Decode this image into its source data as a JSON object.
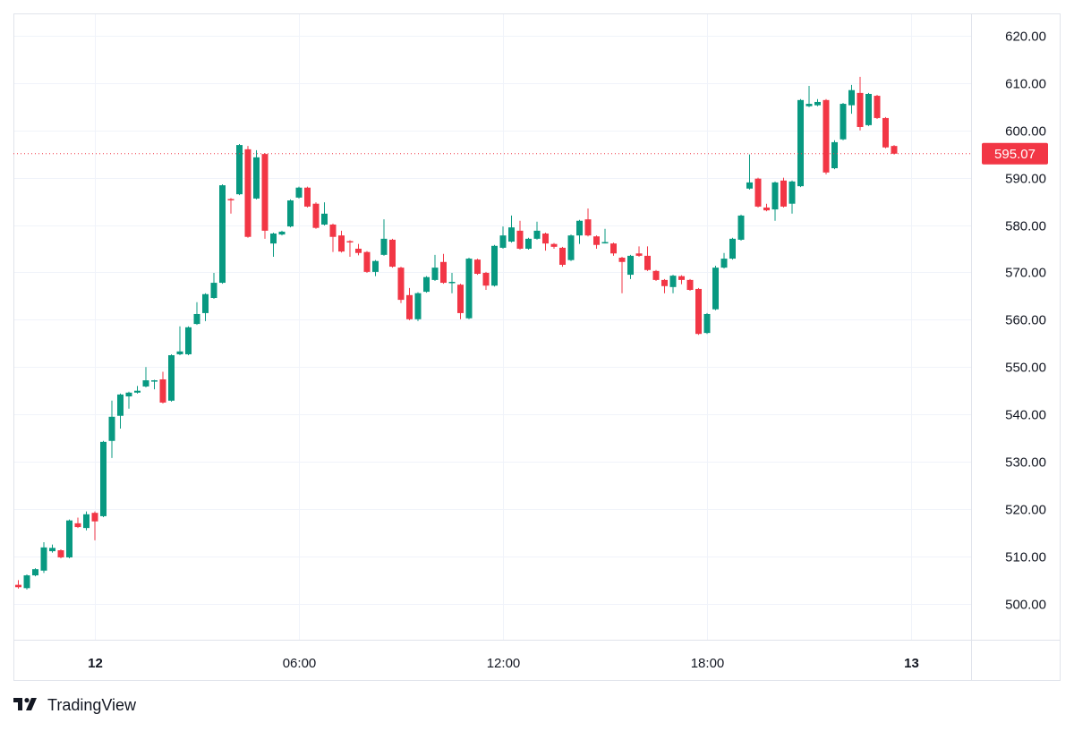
{
  "chart_data": {
    "type": "candlestick",
    "interval_minutes": 15,
    "colors": {
      "up": "#089981",
      "down": "#f23645",
      "grid": "#f0f3fa",
      "last_price": "#f23645"
    },
    "grid": true,
    "ylim": [
      492.4,
      624.7
    ],
    "y_ticks": [
      "500.00",
      "510.00",
      "520.00",
      "530.00",
      "540.00",
      "550.00",
      "560.00",
      "570.00",
      "580.00",
      "590.00",
      "600.00",
      "610.00",
      "620.00"
    ],
    "x_ticks": [
      {
        "label": "12",
        "time": "12 00:00",
        "bold": true
      },
      {
        "label": "06:00",
        "time": "12 06:00",
        "bold": false
      },
      {
        "label": "12:00",
        "time": "12 12:00",
        "bold": false
      },
      {
        "label": "18:00",
        "time": "12 18:00",
        "bold": false
      },
      {
        "label": "13",
        "time": "13 00:00",
        "bold": true
      }
    ],
    "last_price": {
      "value": 595.07,
      "label": "595.07"
    },
    "columns": [
      "time",
      "open",
      "high",
      "low",
      "close"
    ],
    "candles": [
      [
        "11 21:45",
        504.0,
        505.0,
        503.2,
        503.5
      ],
      [
        "11 22:00",
        503.3,
        506.2,
        503.0,
        506.0
      ],
      [
        "11 22:15",
        506.0,
        507.5,
        505.8,
        507.3
      ],
      [
        "11 22:30",
        507.0,
        513.0,
        506.5,
        511.9
      ],
      [
        "11 22:45",
        511.1,
        512.5,
        510.8,
        511.8
      ],
      [
        "11 23:00",
        511.3,
        511.5,
        509.6,
        509.8
      ],
      [
        "11 23:15",
        509.8,
        517.8,
        509.6,
        517.6
      ],
      [
        "11 23:30",
        517.0,
        518.2,
        516.0,
        516.2
      ],
      [
        "11 23:45",
        516.0,
        519.5,
        515.5,
        518.9
      ],
      [
        "12 00:00",
        519.2,
        519.5,
        513.4,
        517.4
      ],
      [
        "12 00:15",
        518.5,
        534.4,
        518.3,
        534.2
      ],
      [
        "12 00:30",
        534.4,
        542.9,
        530.8,
        539.5
      ],
      [
        "12 00:45",
        539.7,
        544.4,
        537.0,
        544.2
      ],
      [
        "12 01:00",
        543.8,
        544.8,
        541.2,
        544.6
      ],
      [
        "12 01:15",
        544.6,
        546.0,
        544.4,
        545.0
      ],
      [
        "12 01:30",
        545.9,
        550.0,
        545.7,
        547.2
      ],
      [
        "12 01:45",
        547.0,
        547.3,
        545.3,
        547.2
      ],
      [
        "12 02:00",
        547.4,
        549.0,
        542.3,
        542.5
      ],
      [
        "12 02:15",
        542.9,
        552.7,
        542.7,
        552.5
      ],
      [
        "12 02:30",
        552.7,
        558.6,
        552.5,
        553.3
      ],
      [
        "12 02:45",
        552.7,
        558.6,
        552.5,
        558.4
      ],
      [
        "12 03:00",
        559.1,
        563.7,
        558.9,
        561.2
      ],
      [
        "12 03:15",
        561.4,
        565.6,
        559.7,
        565.4
      ],
      [
        "12 03:30",
        564.6,
        569.9,
        564.4,
        567.8
      ],
      [
        "12 03:45",
        567.8,
        588.6,
        567.6,
        588.4
      ],
      [
        "12 04:00",
        585.5,
        585.7,
        582.4,
        585.3
      ],
      [
        "12 04:15",
        586.5,
        597.1,
        586.3,
        596.9
      ],
      [
        "12 04:30",
        596.0,
        596.7,
        577.3,
        577.5
      ],
      [
        "12 04:45",
        585.6,
        595.8,
        585.4,
        594.3
      ],
      [
        "12 05:00",
        595.0,
        595.2,
        577.1,
        578.8
      ],
      [
        "12 05:15",
        576.1,
        578.4,
        573.3,
        578.2
      ],
      [
        "12 05:30",
        578.0,
        578.8,
        577.8,
        578.6
      ],
      [
        "12 05:45",
        579.7,
        585.4,
        579.5,
        585.2
      ],
      [
        "12 06:00",
        585.8,
        588.1,
        585.6,
        587.9
      ],
      [
        "12 06:15",
        587.9,
        588.1,
        583.7,
        583.9
      ],
      [
        "12 06:30",
        584.5,
        584.8,
        579.2,
        579.4
      ],
      [
        "12 06:45",
        580.1,
        584.8,
        579.9,
        582.4
      ],
      [
        "12 07:00",
        580.1,
        580.3,
        574.3,
        577.5
      ],
      [
        "12 07:15",
        577.8,
        578.8,
        574.2,
        574.4
      ],
      [
        "12 07:30",
        576.6,
        576.8,
        573.3,
        576.4
      ],
      [
        "12 07:45",
        575.0,
        576.0,
        573.6,
        574.1
      ],
      [
        "12 08:00",
        574.3,
        574.5,
        569.9,
        570.1
      ],
      [
        "12 08:15",
        570.1,
        572.6,
        569.2,
        572.4
      ],
      [
        "12 08:30",
        573.7,
        581.2,
        573.5,
        577.1
      ],
      [
        "12 08:45",
        576.9,
        577.1,
        571.0,
        571.2
      ],
      [
        "12 09:00",
        571.0,
        571.2,
        563.5,
        564.2
      ],
      [
        "12 09:15",
        565.2,
        566.7,
        559.9,
        560.1
      ],
      [
        "12 09:30",
        560.1,
        565.8,
        559.7,
        565.6
      ],
      [
        "12 09:45",
        565.9,
        569.2,
        565.7,
        569.0
      ],
      [
        "12 10:00",
        568.4,
        573.7,
        568.2,
        571.0
      ],
      [
        "12 10:15",
        572.2,
        573.9,
        567.6,
        567.8
      ],
      [
        "12 10:30",
        567.8,
        569.9,
        565.6,
        568.0
      ],
      [
        "12 10:45",
        567.4,
        567.6,
        560.1,
        561.4
      ],
      [
        "12 11:00",
        560.3,
        573.1,
        560.1,
        572.9
      ],
      [
        "12 11:15",
        572.7,
        572.9,
        569.5,
        569.7
      ],
      [
        "12 11:30",
        569.9,
        570.1,
        566.3,
        567.2
      ],
      [
        "12 11:45",
        567.2,
        575.8,
        567.0,
        575.6
      ],
      [
        "12 12:00",
        575.2,
        579.7,
        575.0,
        577.8
      ],
      [
        "12 12:15",
        576.5,
        582.0,
        576.3,
        579.5
      ],
      [
        "12 12:30",
        578.8,
        580.9,
        574.8,
        575.0
      ],
      [
        "12 12:45",
        575.0,
        577.3,
        574.8,
        577.1
      ],
      [
        "12 13:00",
        577.1,
        580.7,
        576.9,
        578.8
      ],
      [
        "12 13:15",
        578.2,
        578.4,
        574.6,
        576.1
      ],
      [
        "12 13:30",
        576.0,
        576.2,
        575.0,
        575.4
      ],
      [
        "12 13:45",
        575.2,
        575.4,
        571.2,
        571.6
      ],
      [
        "12 14:00",
        572.6,
        578.0,
        572.4,
        577.8
      ],
      [
        "12 14:15",
        577.8,
        581.1,
        576.0,
        580.9
      ],
      [
        "12 14:30",
        581.2,
        583.5,
        577.6,
        577.8
      ],
      [
        "12 14:45",
        577.6,
        577.8,
        575.0,
        575.8
      ],
      [
        "12 15:00",
        576.3,
        579.2,
        576.1,
        576.4
      ],
      [
        "12 15:15",
        576.1,
        576.3,
        573.5,
        574.0
      ],
      [
        "12 15:30",
        573.1,
        573.3,
        565.6,
        572.2
      ],
      [
        "12 15:45",
        569.5,
        573.7,
        568.6,
        573.5
      ],
      [
        "12 16:00",
        574.0,
        575.5,
        573.3,
        573.5
      ],
      [
        "12 16:15",
        573.5,
        575.5,
        570.3,
        570.5
      ],
      [
        "12 16:30",
        570.3,
        570.5,
        568.2,
        568.4
      ],
      [
        "12 16:45",
        568.4,
        568.6,
        565.6,
        567.1
      ],
      [
        "12 17:00",
        566.9,
        569.5,
        565.6,
        569.3
      ],
      [
        "12 17:15",
        569.2,
        569.4,
        567.5,
        568.4
      ],
      [
        "12 17:30",
        568.4,
        568.6,
        566.1,
        566.3
      ],
      [
        "12 17:45",
        566.5,
        566.7,
        556.8,
        557.0
      ],
      [
        "12 18:00",
        557.2,
        561.4,
        557.0,
        561.2
      ],
      [
        "12 18:15",
        562.2,
        571.4,
        562.0,
        571.0
      ],
      [
        "12 18:30",
        571.0,
        574.1,
        570.8,
        572.9
      ],
      [
        "12 18:45",
        572.9,
        577.3,
        572.7,
        577.1
      ],
      [
        "12 19:00",
        576.9,
        582.2,
        576.7,
        582.0
      ],
      [
        "12 19:15",
        587.7,
        594.9,
        587.5,
        589.0
      ],
      [
        "12 19:30",
        589.8,
        590.0,
        583.7,
        583.9
      ],
      [
        "12 19:45",
        583.7,
        584.5,
        582.9,
        583.1
      ],
      [
        "12 20:00",
        583.3,
        589.2,
        580.9,
        589.0
      ],
      [
        "12 20:15",
        589.4,
        590.0,
        583.7,
        583.9
      ],
      [
        "12 20:30",
        584.5,
        589.4,
        582.4,
        589.2
      ],
      [
        "12 20:45",
        588.2,
        606.6,
        588.0,
        606.4
      ],
      [
        "12 21:00",
        605.1,
        609.4,
        604.9,
        605.6
      ],
      [
        "12 21:15",
        605.3,
        606.6,
        605.1,
        606.0
      ],
      [
        "12 21:30",
        606.4,
        606.6,
        590.7,
        591.1
      ],
      [
        "12 21:45",
        592.0,
        597.9,
        591.8,
        597.5
      ],
      [
        "12 22:00",
        598.1,
        605.8,
        597.9,
        605.6
      ],
      [
        "12 22:15",
        605.3,
        609.6,
        603.5,
        608.5
      ],
      [
        "12 22:30",
        607.9,
        611.3,
        600.0,
        600.7
      ],
      [
        "12 22:45",
        601.1,
        607.9,
        600.9,
        607.7
      ],
      [
        "12 23:00",
        607.3,
        607.5,
        602.4,
        602.6
      ],
      [
        "12 23:15",
        602.6,
        602.8,
        596.2,
        596.4
      ],
      [
        "12 23:30",
        596.7,
        596.9,
        594.9,
        595.07
      ]
    ]
  },
  "branding": {
    "logo_text": "TradingView"
  }
}
